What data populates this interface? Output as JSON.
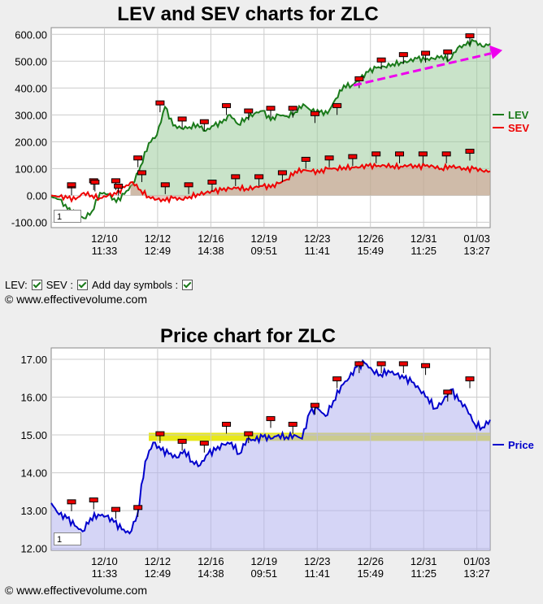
{
  "copyright": "© www.effectivevolume.com",
  "controls": {
    "lev_label": "LEV:",
    "sev_label": "SEV :",
    "day_symbols_label": "Add day symbols :"
  },
  "colors": {
    "lev": "#1a7a1a",
    "sev": "#ee0000",
    "price": "#0000cc",
    "arrow": "#ee00ee",
    "highlight": "#e6e600"
  },
  "chart_data": [
    {
      "type": "area",
      "title": "LEV and SEV charts for ZLC",
      "zoom_value": "1",
      "ylim": [
        -120,
        625
      ],
      "yticks": [
        "600.00",
        "500.00",
        "400.00",
        "300.00",
        "200.00",
        "100.00",
        "0.00",
        "-100.00"
      ],
      "ytick_values": [
        600,
        500,
        400,
        300,
        200,
        100,
        0,
        -100
      ],
      "x_ticks": [
        {
          "date": "12/10",
          "time": "11:33"
        },
        {
          "date": "12/12",
          "time": "12:49"
        },
        {
          "date": "12/16",
          "time": "14:38"
        },
        {
          "date": "12/19",
          "time": "09:51"
        },
        {
          "date": "12/23",
          "time": "11:41"
        },
        {
          "date": "12/26",
          "time": "15:49"
        },
        {
          "date": "12/31",
          "time": "11:25"
        },
        {
          "date": "01/03",
          "time": "13:27"
        }
      ],
      "series": [
        {
          "name": "LEV",
          "values": [
            -5,
            -15,
            -50,
            -70,
            -85,
            -60,
            10,
            5,
            -25,
            5,
            40,
            110,
            195,
            225,
            330,
            260,
            250,
            255,
            265,
            240,
            260,
            270,
            300,
            265,
            290,
            305,
            315,
            280,
            300,
            295,
            310,
            340,
            315,
            310,
            305,
            360,
            410,
            410,
            435,
            460,
            475,
            480,
            490,
            495,
            500,
            510,
            505,
            510,
            520,
            505,
            550,
            560,
            575,
            555,
            565
          ]
        },
        {
          "name": "SEV",
          "values": [
            0,
            -5,
            -10,
            -15,
            10,
            0,
            -10,
            0,
            5,
            30,
            50,
            20,
            -5,
            -15,
            -20,
            -10,
            -15,
            -5,
            5,
            10,
            15,
            20,
            25,
            30,
            25,
            30,
            35,
            30,
            45,
            60,
            90,
            95,
            90,
            85,
            100,
            100,
            105,
            105,
            105,
            110,
            108,
            112,
            110,
            108,
            112,
            105,
            110,
            108,
            100,
            110,
            105,
            95,
            100,
            92,
            90
          ]
        }
      ],
      "day_symbol_values_lev": [
        31,
        50,
        50,
        135,
        340,
        280,
        270,
        330,
        310,
        320,
        320,
        300,
        330,
        430,
        500,
        520,
        525,
        530,
        590
      ],
      "day_symbol_values_sev": [
        35,
        45,
        30,
        80,
        35,
        35,
        45,
        65,
        65,
        80,
        130,
        135,
        140,
        150,
        150,
        150,
        150,
        160
      ],
      "trend_arrow": {
        "from": 410,
        "to": 535
      }
    },
    {
      "type": "area",
      "title": "Price chart for ZLC",
      "zoom_value": "1",
      "ylim": [
        11.95,
        17.3
      ],
      "yticks": [
        "17.00",
        "16.00",
        "15.00",
        "14.00",
        "13.00",
        "12.00"
      ],
      "ytick_values": [
        17,
        16,
        15,
        14,
        13,
        12
      ],
      "x_ticks": [
        {
          "date": "12/10",
          "time": "11:33"
        },
        {
          "date": "12/12",
          "time": "12:49"
        },
        {
          "date": "12/16",
          "time": "14:38"
        },
        {
          "date": "12/19",
          "time": "09:51"
        },
        {
          "date": "12/23",
          "time": "11:41"
        },
        {
          "date": "12/26",
          "time": "15:49"
        },
        {
          "date": "12/31",
          "time": "11:25"
        },
        {
          "date": "01/03",
          "time": "13:27"
        }
      ],
      "highlight_level": 14.95,
      "series": [
        {
          "name": "Price",
          "values": [
            13.2,
            12.9,
            12.8,
            12.6,
            12.45,
            12.8,
            12.9,
            12.85,
            12.7,
            12.5,
            12.4,
            12.9,
            14.3,
            14.8,
            14.6,
            14.5,
            14.4,
            14.6,
            14.3,
            14.2,
            14.5,
            14.6,
            14.75,
            14.8,
            14.5,
            14.9,
            14.85,
            14.95,
            14.9,
            15.0,
            14.95,
            15.0,
            14.9,
            15.6,
            15.7,
            15.5,
            15.9,
            16.3,
            16.5,
            16.8,
            16.9,
            16.7,
            16.6,
            16.7,
            16.6,
            16.5,
            16.4,
            16.2,
            16.0,
            15.7,
            15.9,
            16.2,
            15.9,
            15.7,
            15.3,
            15.2,
            15.4
          ]
        }
      ],
      "day_symbol_values": [
        13.2,
        13.25,
        13.0,
        13.05,
        15.0,
        14.8,
        14.75,
        15.25,
        15.0,
        15.4,
        15.25,
        15.75,
        16.45,
        16.85,
        16.85,
        16.85,
        16.8,
        16.1,
        16.45
      ]
    }
  ]
}
